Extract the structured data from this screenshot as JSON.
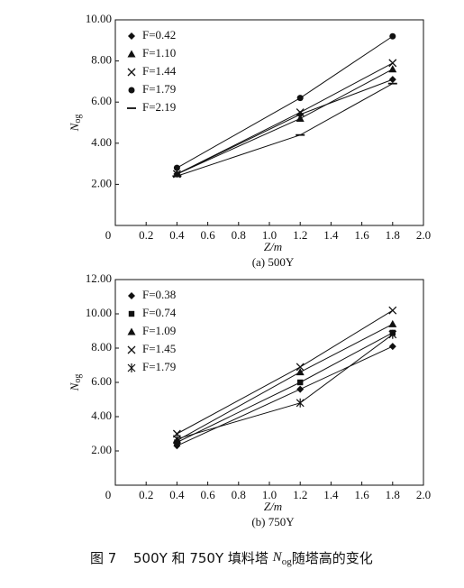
{
  "chart_data": [
    {
      "type": "line",
      "caption": "(a) 500Y",
      "x_label": "Z/m",
      "y_label": {
        "main": "N",
        "sub": "og"
      },
      "xlim": [
        0,
        2
      ],
      "ylim": [
        0,
        10
      ],
      "grid": false,
      "legend": "upper left",
      "xticks": [
        0,
        0.2,
        0.4,
        0.6,
        0.8,
        {
          "value": 1,
          "label": "1.0"
        },
        1.2,
        1.4,
        1.6,
        1.8,
        {
          "value": 2,
          "label": "2.0"
        }
      ],
      "yticks": [
        {
          "value": 2,
          "label": "2.00"
        },
        {
          "value": 4,
          "label": "4.00"
        },
        {
          "value": 6,
          "label": "6.00"
        },
        {
          "value": 8,
          "label": "8.00"
        },
        {
          "value": 10,
          "label": "10.00"
        }
      ],
      "x": [
        0.4,
        1.2,
        1.8
      ],
      "series": [
        {
          "name": "F=0.42",
          "marker": "diamond",
          "color": "#111",
          "values": [
            2.5,
            5.4,
            7.1
          ]
        },
        {
          "name": "F=1.10",
          "marker": "triangle",
          "color": "#111",
          "values": [
            2.5,
            5.2,
            7.6
          ]
        },
        {
          "name": "F=1.44",
          "marker": "x",
          "color": "#111",
          "values": [
            2.5,
            5.5,
            7.9
          ]
        },
        {
          "name": "F=1.79",
          "marker": "circle",
          "color": "#111",
          "values": [
            2.8,
            6.2,
            9.2
          ]
        },
        {
          "name": "F=2.19",
          "marker": "dash",
          "color": "#111",
          "values": [
            2.4,
            4.4,
            6.9
          ]
        }
      ]
    },
    {
      "type": "line",
      "caption": "(b) 750Y",
      "x_label": "Z/m",
      "y_label": {
        "main": "N",
        "sub": "og"
      },
      "xlim": [
        0,
        2
      ],
      "ylim": [
        0,
        12
      ],
      "grid": false,
      "legend": "upper left",
      "xticks": [
        0,
        0.2,
        0.4,
        0.6,
        0.8,
        {
          "value": 1,
          "label": "1.0"
        },
        1.2,
        1.4,
        1.6,
        1.8,
        {
          "value": 2,
          "label": "2.0"
        }
      ],
      "yticks": [
        {
          "value": 2,
          "label": "2.00"
        },
        {
          "value": 4,
          "label": "4.00"
        },
        {
          "value": 6,
          "label": "6.00"
        },
        {
          "value": 8,
          "label": "8.00"
        },
        {
          "value": 10,
          "label": "10.00"
        },
        {
          "value": 12,
          "label": "12.00"
        }
      ],
      "x": [
        0.4,
        1.2,
        1.8
      ],
      "series": [
        {
          "name": "F=0.38",
          "marker": "diamond",
          "color": "#111",
          "values": [
            2.3,
            5.6,
            8.1
          ]
        },
        {
          "name": "F=0.74",
          "marker": "square",
          "color": "#111",
          "values": [
            2.5,
            6.0,
            8.9
          ]
        },
        {
          "name": "F=1.09",
          "marker": "triangle",
          "color": "#111",
          "values": [
            2.6,
            6.6,
            9.4
          ]
        },
        {
          "name": "F=1.45",
          "marker": "x",
          "color": "#111",
          "values": [
            3.0,
            6.9,
            10.2
          ]
        },
        {
          "name": "F=1.79",
          "marker": "star",
          "color": "#111",
          "values": [
            2.7,
            4.8,
            8.8
          ]
        }
      ]
    }
  ],
  "figure_caption": {
    "number": "图 7",
    "text": "500Y 和 750Y 填料塔",
    "symbol": "N",
    "sub": "og",
    "tail": "随塔高的变化"
  }
}
